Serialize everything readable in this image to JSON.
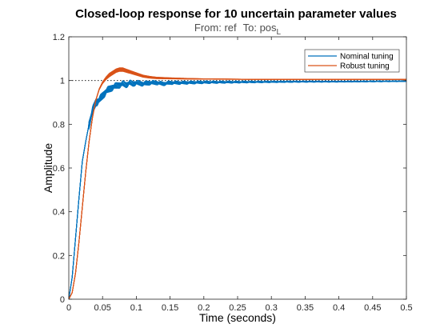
{
  "chart_data": {
    "type": "line",
    "title": "Closed-loop response for 10 uncertain parameter values",
    "subtitle": {
      "from_label": "From: ref",
      "to_label": "To: pos",
      "to_subscript": "L"
    },
    "xlabel": "Time (seconds)",
    "ylabel": "Amplitude",
    "xlim": [
      0,
      0.5
    ],
    "ylim": [
      0,
      1.2
    ],
    "xticks": [
      "0",
      "0.05",
      "0.1",
      "0.15",
      "0.2",
      "0.25",
      "0.3",
      "0.35",
      "0.4",
      "0.45",
      "0.5"
    ],
    "yticks": [
      "0",
      "0.2",
      "0.4",
      "0.6",
      "0.8",
      "1",
      "1.2"
    ],
    "reference_line": 1,
    "legend_placement": "top-right",
    "grid": false,
    "uncertain_samples": 10,
    "series": [
      {
        "name": "Nominal tuning",
        "color": "#0072bd",
        "x": [
          0,
          0.005,
          0.01,
          0.015,
          0.02,
          0.025,
          0.03,
          0.035,
          0.04,
          0.045,
          0.05,
          0.055,
          0.06,
          0.065,
          0.07,
          0.075,
          0.08,
          0.085,
          0.09,
          0.095,
          0.1,
          0.11,
          0.12,
          0.13,
          0.14,
          0.15,
          0.17,
          0.2,
          0.25,
          0.3,
          0.35,
          0.4,
          0.45,
          0.5
        ],
        "y": [
          0,
          0.1,
          0.28,
          0.46,
          0.63,
          0.72,
          0.8,
          0.86,
          0.9,
          0.91,
          0.93,
          0.95,
          0.96,
          0.97,
          0.975,
          0.98,
          0.985,
          0.98,
          0.99,
          0.985,
          0.99,
          0.985,
          0.99,
          0.99,
          0.985,
          0.99,
          0.99,
          0.992,
          0.993,
          0.994,
          0.995,
          0.995,
          0.996,
          0.997
        ]
      },
      {
        "name": "Robust tuning",
        "color": "#d95319",
        "x": [
          0,
          0.005,
          0.01,
          0.015,
          0.02,
          0.025,
          0.03,
          0.035,
          0.04,
          0.045,
          0.05,
          0.055,
          0.06,
          0.065,
          0.07,
          0.075,
          0.08,
          0.085,
          0.09,
          0.1,
          0.11,
          0.12,
          0.13,
          0.15,
          0.18,
          0.2,
          0.25,
          0.3,
          0.35,
          0.4,
          0.45,
          0.5
        ],
        "y": [
          0,
          0.03,
          0.12,
          0.26,
          0.42,
          0.58,
          0.72,
          0.83,
          0.91,
          0.96,
          0.99,
          1.01,
          1.025,
          1.035,
          1.045,
          1.05,
          1.05,
          1.045,
          1.04,
          1.03,
          1.02,
          1.015,
          1.012,
          1.01,
          1.008,
          1.007,
          1.006,
          1.005,
          1.005,
          1.005,
          1.005,
          1.005
        ]
      }
    ]
  }
}
